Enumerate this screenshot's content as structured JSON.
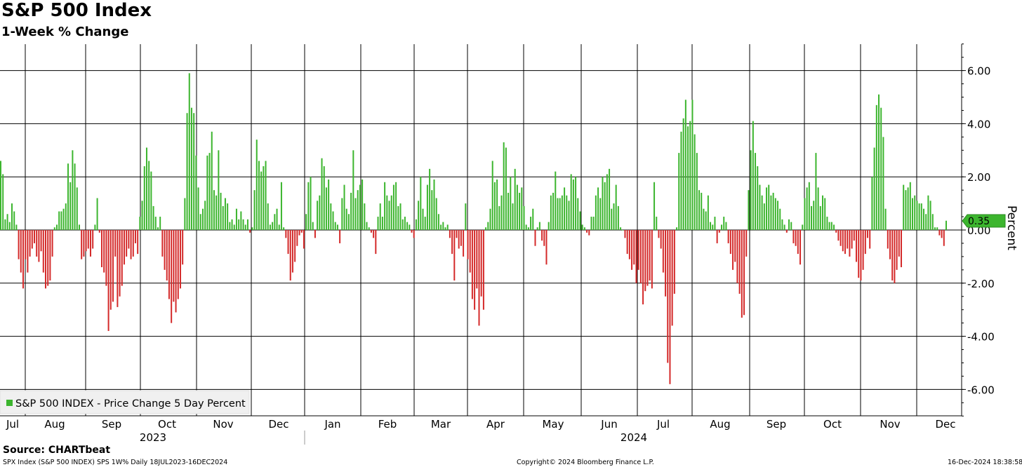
{
  "header": {
    "title": "S&P 500 Index",
    "subtitle": "1-Week % Change"
  },
  "footer": {
    "source": "Source: CHARTbeat",
    "left": "SPX Index (S&P 500 INDEX) SPS 1W%  Daily 18JUL2023-16DEC2024",
    "center": "Copyright© 2024 Bloomberg Finance L.P.",
    "right": "16-Dec-2024 18:38:58"
  },
  "colors": {
    "positive": "#3cb52e",
    "negative": "#d42a2a",
    "grid": "#000000",
    "last_value_bg": "#3cb52e"
  },
  "chart_data": {
    "type": "bar",
    "title": "S&P 500 Index",
    "subtitle": "1-Week % Change",
    "ylabel": "Percent",
    "ylim": [
      -7.0,
      7.0
    ],
    "yticks": [
      6.0,
      4.0,
      2.0,
      0.0,
      -2.0,
      -4.0,
      -6.0
    ],
    "ytick_labels": [
      "6.00",
      "4.00",
      "2.00",
      "0.00",
      "-2.00",
      "-4.00",
      "-6.00"
    ],
    "grid": true,
    "legend": {
      "position": "bottom-left",
      "label": "S&P 500 INDEX - Price Change 5 Day Percent"
    },
    "last_value": 0.35,
    "last_value_label": "0.35",
    "months": [
      "Jul",
      "Aug",
      "Sep",
      "Oct",
      "Nov",
      "Dec",
      "Jan",
      "Feb",
      "Mar",
      "Apr",
      "May",
      "Jun",
      "Jul",
      "Aug",
      "Sep",
      "Oct",
      "Nov",
      "Dec"
    ],
    "years": [
      "2023",
      "2024"
    ],
    "series": [
      {
        "name": "S&P 500 INDEX - Price Change 5 Day Percent",
        "values": [
          2.6,
          2.1,
          0.4,
          0.6,
          0.3,
          1.0,
          0.7,
          0.2,
          -1.1,
          -1.6,
          -2.2,
          -1.1,
          -1.6,
          -1.0,
          -0.7,
          -0.5,
          -1.0,
          -1.2,
          -0.8,
          -1.6,
          -2.2,
          -2.1,
          -1.9,
          -1.0,
          0.1,
          0.2,
          0.7,
          0.7,
          0.8,
          1.0,
          2.5,
          1.8,
          3.0,
          2.5,
          1.6,
          0.2,
          -1.1,
          -1.0,
          -0.8,
          -0.7,
          -1.0,
          -0.7,
          0.2,
          1.2,
          -0.1,
          -1.4,
          -1.6,
          -2.1,
          -3.8,
          -3.0,
          -2.7,
          -1.0,
          -2.9,
          -2.5,
          -2.1,
          -1.3,
          -1.0,
          -0.7,
          -1.1,
          -1.0,
          -0.5,
          -0.9,
          0.5,
          1.1,
          2.4,
          3.1,
          2.6,
          2.2,
          0.9,
          0.5,
          0.1,
          0.5,
          -1.0,
          -1.5,
          -1.9,
          -2.6,
          -3.5,
          -2.7,
          -3.1,
          -2.6,
          -2.2,
          -1.3,
          1.2,
          4.4,
          5.9,
          4.6,
          4.4,
          2.8,
          1.6,
          0.6,
          0.8,
          1.1,
          2.8,
          2.9,
          3.7,
          1.5,
          1.3,
          3.0,
          1.4,
          0.9,
          1.2,
          1.0,
          0.3,
          0.4,
          0.2,
          0.8,
          0.4,
          0.7,
          0.4,
          0.2,
          0.4,
          -0.1,
          0.1,
          1.5,
          3.4,
          2.6,
          2.2,
          2.4,
          2.6,
          1.0,
          0.2,
          0.3,
          0.6,
          0.8,
          0.2,
          1.8,
          0.1,
          -0.3,
          -0.9,
          -1.9,
          -1.6,
          -1.2,
          -0.6,
          -0.2,
          -0.1,
          -0.7,
          0.6,
          1.8,
          2.0,
          0.3,
          -0.3,
          1.1,
          1.3,
          2.7,
          2.4,
          1.6,
          1.9,
          1.0,
          0.7,
          0.3,
          0.2,
          -0.5,
          1.2,
          1.7,
          0.8,
          0.6,
          1.4,
          3.0,
          1.2,
          1.5,
          1.7,
          1.9,
          1.0,
          0.3,
          0.1,
          -0.1,
          -0.3,
          -0.9,
          0.5,
          1.0,
          0.5,
          1.8,
          1.3,
          1.1,
          1.3,
          1.7,
          1.8,
          0.9,
          1.0,
          0.4,
          0.5,
          0.3,
          0.2,
          -0.1,
          -0.3,
          0.4,
          1.1,
          2.0,
          0.8,
          0.5,
          1.7,
          2.3,
          1.5,
          1.9,
          1.2,
          0.6,
          0.2,
          0.3,
          0.1,
          0.2,
          -0.3,
          -0.9,
          -1.9,
          -0.3,
          -0.7,
          -0.6,
          -1.0,
          1.0,
          -1.1,
          -1.6,
          -2.6,
          -3.0,
          -2.2,
          -3.6,
          -2.5,
          -3.0,
          0.1,
          0.3,
          0.8,
          2.6,
          1.8,
          1.9,
          0.9,
          1.3,
          3.3,
          3.1,
          1.4,
          2.0,
          1.0,
          2.3,
          1.7,
          1.4,
          1.6,
          0.9,
          0.2,
          0.1,
          0.5,
          0.8,
          -0.6,
          0.1,
          0.3,
          -0.4,
          -0.6,
          -1.3,
          0.3,
          1.3,
          1.4,
          2.2,
          1.2,
          1.2,
          1.3,
          1.6,
          1.3,
          1.1,
          2.1,
          1.9,
          2.0,
          1.2,
          0.7,
          0.2,
          0.1,
          -0.1,
          -0.2,
          0.5,
          0.5,
          1.3,
          1.6,
          1.2,
          2.0,
          1.8,
          2.1,
          2.3,
          0.8,
          1.0,
          1.7,
          0.9,
          0.1,
          0.0,
          -0.3,
          -0.9,
          -1.1,
          -1.5,
          -1.3,
          -2.0,
          -1.5,
          -2.0,
          -2.8,
          -2.3,
          -2.1,
          -1.9,
          -2.2,
          1.8,
          0.5,
          -0.3,
          -0.7,
          -1.6,
          -2.5,
          -5.0,
          -5.8,
          -3.6,
          -2.4,
          0.1,
          2.9,
          3.7,
          4.2,
          4.9,
          3.9,
          4.1,
          4.9,
          3.6,
          2.9,
          1.5,
          1.4,
          0.8,
          0.7,
          1.3,
          0.3,
          0.2,
          0.5,
          -0.5,
          -0.1,
          0.2,
          0.5,
          0.3,
          -0.5,
          -0.9,
          -1.5,
          -1.2,
          -2.0,
          -2.4,
          -3.3,
          -3.2,
          -1.0,
          1.5,
          3.0,
          4.1,
          2.9,
          2.4,
          1.7,
          1.3,
          1.0,
          1.6,
          1.7,
          1.3,
          1.4,
          1.2,
          1.1,
          0.8,
          0.4,
          0.2,
          -0.1,
          0.4,
          0.3,
          -0.5,
          -0.6,
          -0.9,
          -1.3,
          0.2,
          1.2,
          1.6,
          1.8,
          0.9,
          1.1,
          2.9,
          1.6,
          0.9,
          1.3,
          1.2,
          0.5,
          0.3,
          0.3,
          0.2,
          -0.1,
          -0.4,
          -0.6,
          -0.8,
          -0.9,
          -0.7,
          -1.0,
          -0.7,
          -0.4,
          -1.2,
          -1.8,
          -1.9,
          -1.5,
          -0.9,
          -0.3,
          -0.7,
          2.0,
          3.1,
          4.7,
          5.1,
          4.6,
          3.5,
          0.8,
          -0.7,
          -1.1,
          -1.9,
          -2.0,
          -1.5,
          -1.0,
          -1.4,
          1.7,
          1.5,
          1.6,
          1.8,
          1.2,
          1.3,
          1.1,
          1.0,
          1.0,
          0.8,
          0.6,
          1.3,
          1.1,
          0.6,
          0.1,
          0.1,
          -0.2,
          -0.3,
          -0.6,
          0.35
        ]
      }
    ]
  }
}
